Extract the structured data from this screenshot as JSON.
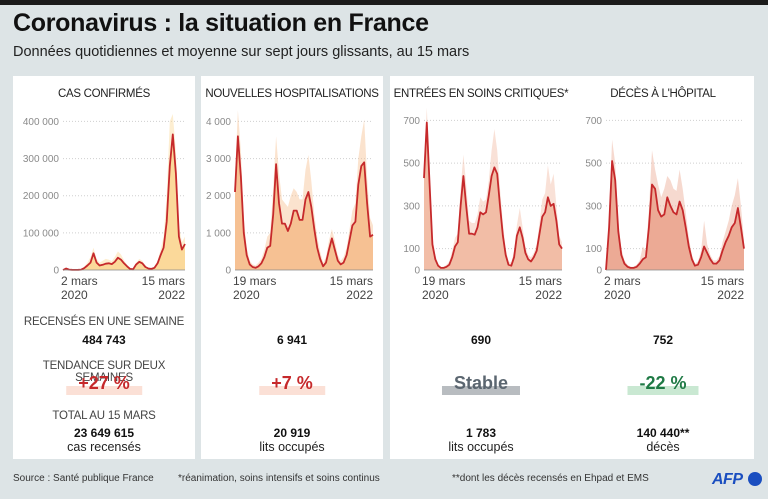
{
  "header": {
    "title": "Coronavirus : la situation en France",
    "subtitle": "Données quotidiennes et moyenne sur sept jours glissants, au 15 mars"
  },
  "colors": {
    "line": "#c6292b",
    "fill_cases": "#fbd99a",
    "fill_hosp": "#f6c193",
    "fill_icu": "#f2bda6",
    "fill_deaths": "#ecaa95",
    "trend_up": "#c6292b",
    "trend_stable": "#5b6670",
    "trend_down": "#1f7a45",
    "afp_blue": "#1a4ec0",
    "background": "#dde4e6"
  },
  "panels": [
    {
      "title": "CAS CONFIRMÉS",
      "stat_label": "RECENSÉS EN UNE SEMAINE",
      "weekly": "484 743",
      "trend_label": "TENDANCE SUR DEUX SEMAINES",
      "trend": "+27 %",
      "trend_kind": "up",
      "total_label": "TOTAL AU 15 MARS",
      "total": "23 649 615",
      "total_unit": "cas recensés"
    },
    {
      "title": "NOUVELLES HOSPITALISATIONS",
      "weekly": "6 941",
      "trend": "+7 %",
      "trend_kind": "up",
      "total": "20 919",
      "total_unit": "lits occupés"
    },
    {
      "title": "ENTRÉES EN SOINS CRITIQUES*",
      "weekly": "690",
      "trend": "Stable",
      "trend_kind": "stable",
      "total": "1 783",
      "total_unit": "lits occupés"
    },
    {
      "title": "DÉCÈS À L'HÔPITAL",
      "weekly": "752",
      "trend": "-22 %",
      "trend_kind": "down",
      "total": "140 440**",
      "total_unit": "décès"
    }
  ],
  "footer": {
    "source": "Source : Santé publique France",
    "note1": "*réanimation, soins intensifs et soins continus",
    "note2": "**dont les décès recensés en Ehpad et EMS",
    "logo": "AFP"
  },
  "chart_data": [
    {
      "type": "area",
      "title": "CAS CONFIRMÉS",
      "x_start_label": [
        "2 mars",
        "2020"
      ],
      "x_end_label": [
        "15 mars",
        "2022"
      ],
      "yticks": [
        0,
        100000,
        200000,
        300000,
        400000
      ],
      "ytick_labels": [
        "0",
        "100 000",
        "200 000",
        "300 000",
        "400 000"
      ],
      "ylim": [
        0,
        420000
      ],
      "series_avg": [
        0,
        4000,
        1000,
        500,
        300,
        500,
        1000,
        5000,
        12000,
        20000,
        45000,
        20000,
        12000,
        14000,
        17000,
        18000,
        16000,
        22000,
        33000,
        28000,
        18000,
        10000,
        3000,
        2000,
        15000,
        22000,
        18000,
        8000,
        4000,
        3000,
        6000,
        18000,
        40000,
        60000,
        130000,
        280000,
        365000,
        260000,
        90000,
        55000,
        70000
      ],
      "series_daily_peak": [
        0,
        6000,
        2000,
        1000,
        800,
        1000,
        2500,
        9000,
        20000,
        35000,
        60000,
        30000,
        20000,
        25000,
        30000,
        28000,
        24000,
        35000,
        50000,
        42000,
        26000,
        14000,
        5000,
        3500,
        20000,
        30000,
        25000,
        12000,
        6000,
        4500,
        9000,
        25000,
        55000,
        90000,
        200000,
        400000,
        420000,
        320000,
        120000,
        75000,
        90000
      ]
    },
    {
      "type": "area",
      "title": "NOUVELLES HOSPITALISATIONS",
      "x_start_label": [
        "19 mars",
        "2020"
      ],
      "x_end_label": [
        "15 mars",
        "2022"
      ],
      "yticks": [
        0,
        1000,
        2000,
        3000,
        4000
      ],
      "ytick_labels": [
        "0",
        "1 000",
        "2 000",
        "3 000",
        "4 000"
      ],
      "ylim": [
        0,
        4200
      ],
      "series_avg": [
        2100,
        3600,
        2500,
        1000,
        400,
        150,
        80,
        60,
        100,
        180,
        350,
        600,
        650,
        1500,
        2850,
        1800,
        1250,
        1250,
        1050,
        1250,
        1600,
        1600,
        1350,
        1350,
        1900,
        2100,
        1700,
        1100,
        600,
        300,
        100,
        200,
        550,
        850,
        550,
        250,
        150,
        200,
        400,
        800,
        1200,
        1300,
        2300,
        2800,
        2900,
        1800,
        900,
        950
      ],
      "series_daily_peak": [
        2500,
        4300,
        3200,
        1400,
        600,
        250,
        150,
        120,
        200,
        300,
        550,
        900,
        1000,
        2200,
        3600,
        2600,
        1900,
        1800,
        1700,
        2000,
        2200,
        2100,
        1900,
        1900,
        2700,
        3100,
        2400,
        1500,
        900,
        500,
        200,
        350,
        800,
        1100,
        800,
        400,
        250,
        350,
        600,
        1100,
        1600,
        1800,
        3000,
        3600,
        4050,
        2500,
        1400,
        1200
      ]
    },
    {
      "type": "area",
      "title": "ENTRÉES EN SOINS CRITIQUES*",
      "x_start_label": [
        "19 mars",
        "2020"
      ],
      "x_end_label": [
        "15 mars",
        "2022"
      ],
      "yticks": [
        0,
        100,
        300,
        500,
        700
      ],
      "ytick_labels": [
        "0",
        "100",
        "300",
        "500",
        "700"
      ],
      "ylim": [
        0,
        730
      ],
      "series_avg": [
        430,
        690,
        400,
        120,
        50,
        20,
        10,
        10,
        15,
        25,
        60,
        110,
        130,
        300,
        440,
        300,
        170,
        170,
        165,
        200,
        270,
        260,
        270,
        350,
        440,
        480,
        450,
        300,
        160,
        70,
        25,
        20,
        60,
        160,
        200,
        150,
        80,
        50,
        40,
        60,
        90,
        170,
        250,
        270,
        340,
        300,
        310,
        230,
        120,
        100
      ],
      "series_daily_peak": [
        500,
        760,
        470,
        160,
        70,
        30,
        15,
        15,
        25,
        40,
        90,
        150,
        170,
        380,
        540,
        400,
        230,
        220,
        220,
        260,
        340,
        320,
        330,
        420,
        560,
        660,
        560,
        380,
        220,
        100,
        40,
        35,
        90,
        210,
        290,
        200,
        110,
        70,
        60,
        80,
        120,
        220,
        330,
        360,
        490,
        400,
        450,
        300,
        160,
        130
      ]
    },
    {
      "type": "area",
      "title": "DÉCÈS À L'HÔPITAL",
      "x_start_label": [
        "2 mars",
        "2020"
      ],
      "x_end_label": [
        "15 mars",
        "2022"
      ],
      "yticks": [
        0,
        100,
        300,
        500,
        700
      ],
      "ytick_labels": [
        "0",
        "100",
        "300",
        "500",
        "700"
      ],
      "ylim": [
        0,
        730
      ],
      "series_avg": [
        0,
        200,
        510,
        420,
        180,
        70,
        30,
        15,
        10,
        10,
        15,
        30,
        50,
        60,
        200,
        400,
        380,
        280,
        250,
        260,
        340,
        300,
        270,
        260,
        320,
        280,
        200,
        110,
        50,
        20,
        25,
        60,
        110,
        80,
        50,
        30,
        30,
        45,
        90,
        130,
        160,
        200,
        220,
        290,
        200,
        100
      ],
      "series_daily_peak": [
        0,
        260,
        610,
        500,
        230,
        100,
        45,
        25,
        15,
        15,
        25,
        45,
        110,
        90,
        280,
        560,
        470,
        400,
        340,
        380,
        440,
        420,
        380,
        370,
        470,
        380,
        270,
        150,
        70,
        30,
        40,
        90,
        230,
        120,
        70,
        45,
        45,
        65,
        130,
        180,
        230,
        300,
        350,
        430,
        300,
        140
      ]
    }
  ]
}
